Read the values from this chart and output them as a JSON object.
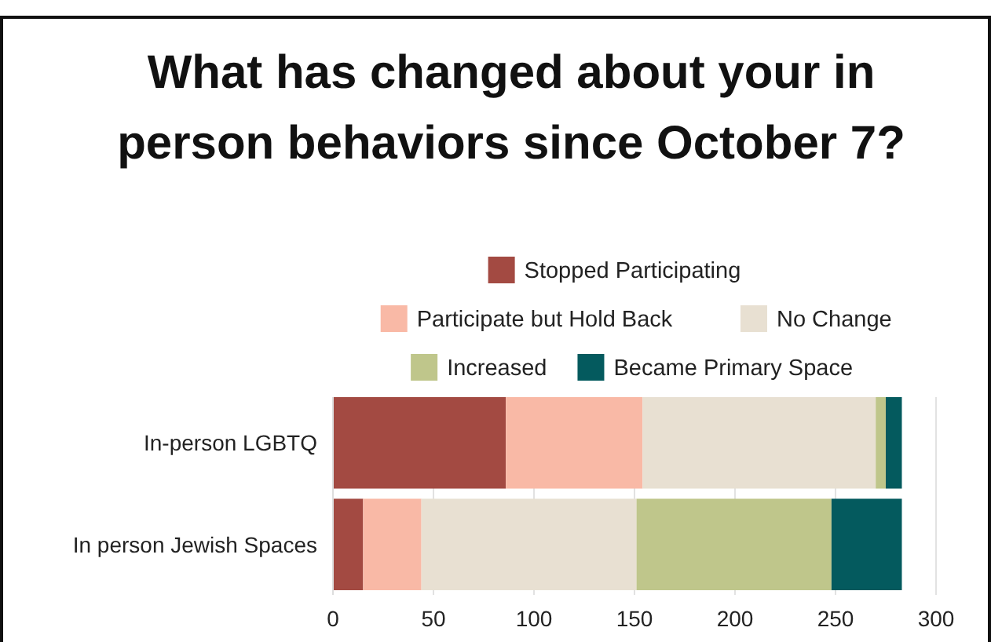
{
  "chart_data": {
    "type": "bar",
    "orientation": "horizontal",
    "stacked": true,
    "title": "What has changed about your in person behaviors since October 7?",
    "categories": [
      "In-person LGBTQ",
      "In person Jewish Spaces"
    ],
    "series": [
      {
        "name": "Stopped Participating",
        "color": "#a34a42",
        "values": [
          86,
          15
        ]
      },
      {
        "name": "Participate but Hold Back",
        "color": "#f9b9a6",
        "values": [
          68,
          29
        ]
      },
      {
        "name": "No Change",
        "color": "#e8e0d2",
        "values": [
          116,
          107
        ]
      },
      {
        "name": "Increased",
        "color": "#bfc68b",
        "values": [
          5,
          97
        ]
      },
      {
        "name": "Became Primary Space",
        "color": "#045a5e",
        "values": [
          8,
          35
        ]
      }
    ],
    "xlim": [
      0,
      300
    ],
    "xticks": [
      0,
      50,
      100,
      150,
      200,
      250,
      300
    ],
    "grid": "x",
    "legend": "top"
  }
}
